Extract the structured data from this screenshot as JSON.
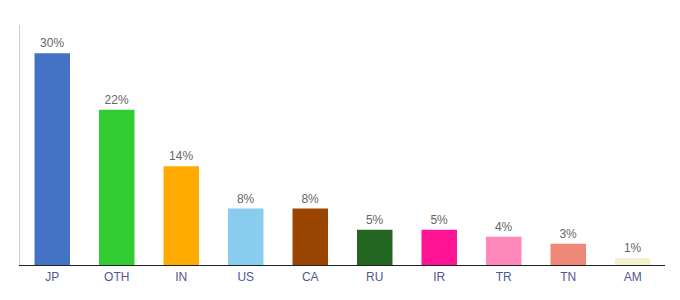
{
  "chart_data": {
    "type": "bar",
    "categories": [
      "JP",
      "OTH",
      "IN",
      "US",
      "CA",
      "RU",
      "IR",
      "TR",
      "TN",
      "AM"
    ],
    "values": [
      30,
      22,
      14,
      8,
      8,
      5,
      5,
      4,
      3,
      1
    ],
    "value_labels": [
      "30%",
      "22%",
      "14%",
      "8%",
      "8%",
      "5%",
      "5%",
      "4%",
      "3%",
      "1%"
    ],
    "colors": [
      "#4472c4",
      "#33cc33",
      "#ffaa00",
      "#88ccee",
      "#994400",
      "#226622",
      "#ff1493",
      "#ff88bb",
      "#ee8877",
      "#f5f0d0"
    ],
    "ylim": [
      0,
      34
    ],
    "grid": false,
    "tick_labels": "x"
  }
}
